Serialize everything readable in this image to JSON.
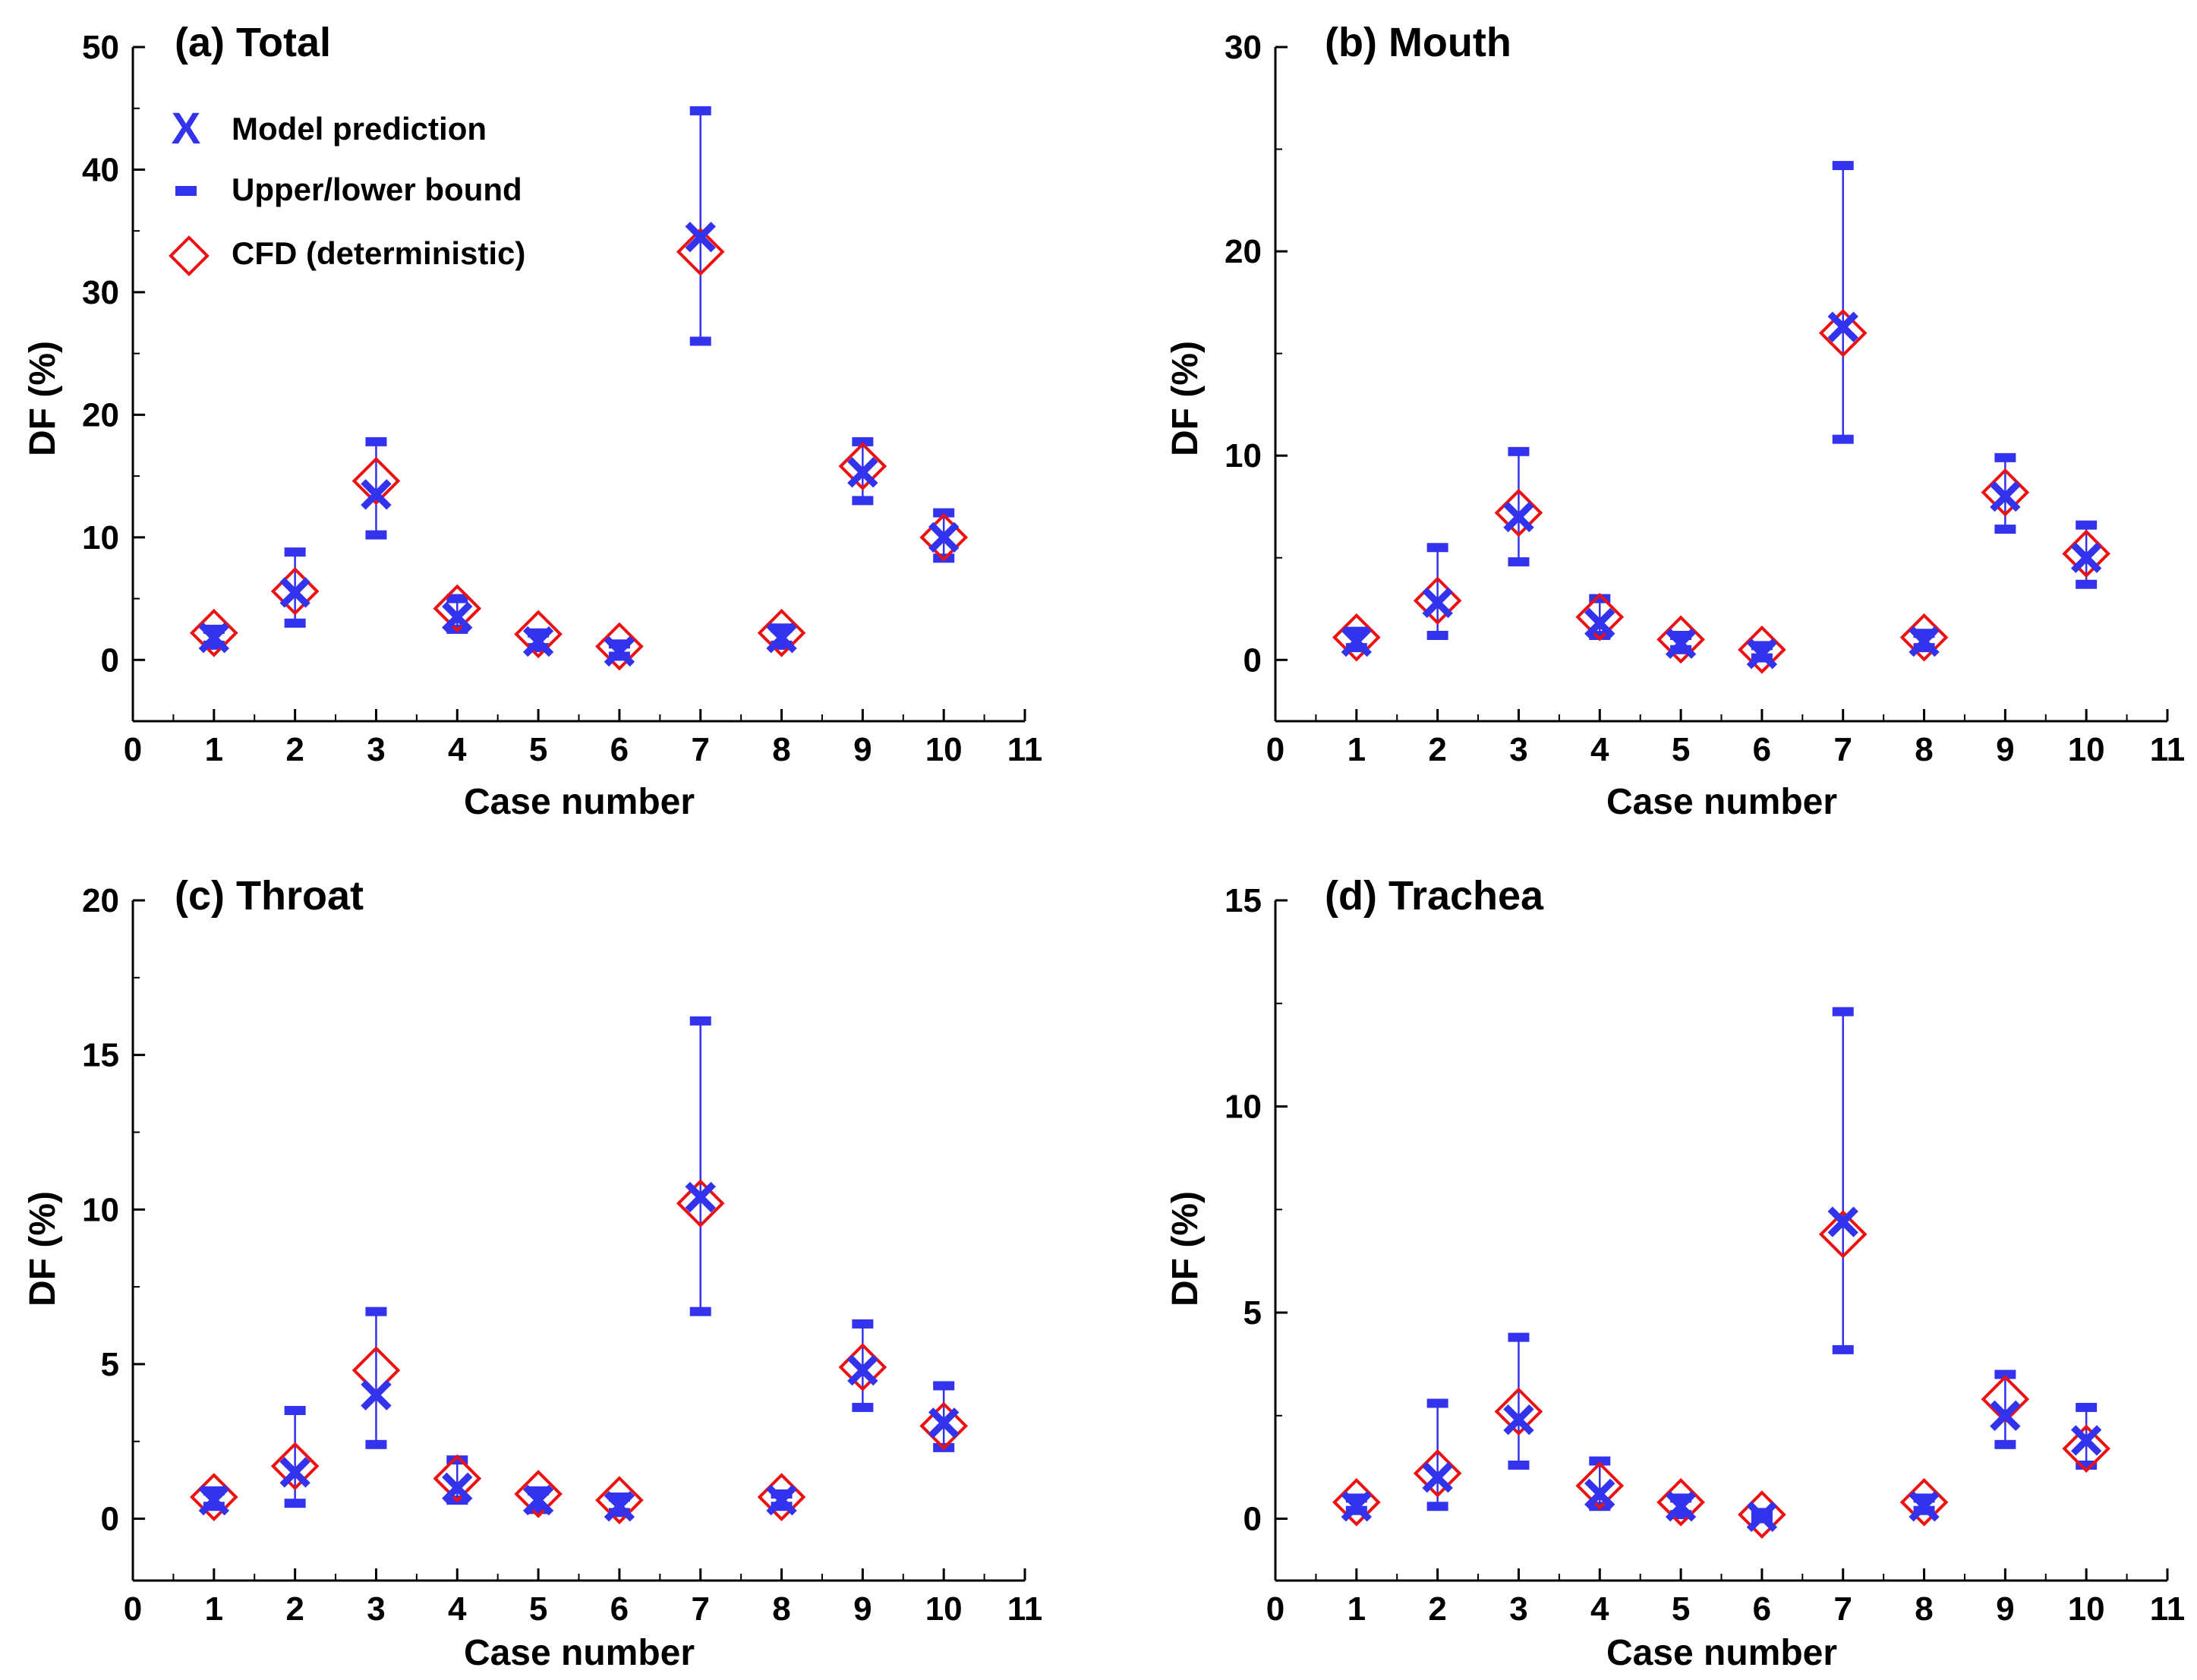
{
  "colors": {
    "model": "#3333ee",
    "cfd": "#ee1111",
    "axis": "#000000"
  },
  "legend": {
    "model_label": "Model prediction",
    "bound_label": "Upper/lower bound",
    "cfd_label": "CFD (deterministic)"
  },
  "chart_data": [
    {
      "type": "scatter",
      "title": "(a) Total",
      "xlabel": "Case number",
      "ylabel": "DF (%)",
      "xlim": [
        0,
        11
      ],
      "ylim": [
        -5,
        50
      ],
      "xticks": [
        0,
        1,
        2,
        3,
        4,
        5,
        6,
        7,
        8,
        9,
        10,
        11
      ],
      "yticks": [
        0,
        10,
        20,
        30,
        40,
        50
      ],
      "x": [
        1,
        2,
        3,
        4,
        5,
        6,
        7,
        8,
        9,
        10
      ],
      "series": [
        {
          "name": "Model prediction",
          "values": [
            1.8,
            5.5,
            13.5,
            3.5,
            1.5,
            0.7,
            34.5,
            1.8,
            15.3,
            10.0
          ]
        },
        {
          "name": "Upper bound",
          "values": [
            2.5,
            8.8,
            17.8,
            5.0,
            2.2,
            1.3,
            44.8,
            2.6,
            17.8,
            12.0
          ]
        },
        {
          "name": "Lower bound",
          "values": [
            1.2,
            3.0,
            10.2,
            2.5,
            1.0,
            0.3,
            26.0,
            1.2,
            13.0,
            8.3
          ]
        },
        {
          "name": "CFD (deterministic)",
          "values": [
            2.2,
            5.6,
            14.6,
            4.2,
            2.1,
            1.1,
            33.3,
            2.2,
            15.8,
            10.0
          ]
        }
      ]
    },
    {
      "type": "scatter",
      "title": "(b) Mouth",
      "xlabel": "Case number",
      "ylabel": "DF (%)",
      "xlim": [
        0,
        11
      ],
      "ylim": [
        -3,
        30
      ],
      "xticks": [
        0,
        1,
        2,
        3,
        4,
        5,
        6,
        7,
        8,
        9,
        10,
        11
      ],
      "yticks": [
        0,
        10,
        20,
        30
      ],
      "x": [
        1,
        2,
        3,
        4,
        5,
        6,
        7,
        8,
        9,
        10
      ],
      "series": [
        {
          "name": "Model prediction",
          "values": [
            0.9,
            2.8,
            7.0,
            1.8,
            0.8,
            0.3,
            16.3,
            0.9,
            8.0,
            5.0
          ]
        },
        {
          "name": "Upper bound",
          "values": [
            1.4,
            5.5,
            10.2,
            3.0,
            1.2,
            0.7,
            24.2,
            1.3,
            9.9,
            6.6
          ]
        },
        {
          "name": "Lower bound",
          "values": [
            0.6,
            1.2,
            4.8,
            1.2,
            0.5,
            0.1,
            10.8,
            0.6,
            6.4,
            3.7
          ]
        },
        {
          "name": "CFD (deterministic)",
          "values": [
            1.1,
            2.9,
            7.2,
            2.1,
            1.0,
            0.5,
            16.0,
            1.1,
            8.2,
            5.2
          ]
        }
      ]
    },
    {
      "type": "scatter",
      "title": "(c) Throat",
      "xlabel": "Case number",
      "ylabel": "DF (%)",
      "xlim": [
        0,
        11
      ],
      "ylim": [
        -2,
        20
      ],
      "xticks": [
        0,
        1,
        2,
        3,
        4,
        5,
        6,
        7,
        8,
        9,
        10,
        11
      ],
      "yticks": [
        0,
        5,
        10,
        15,
        20
      ],
      "x": [
        1,
        2,
        3,
        4,
        5,
        6,
        7,
        8,
        9,
        10
      ],
      "series": [
        {
          "name": "Model prediction",
          "values": [
            0.6,
            1.5,
            4.0,
            1.0,
            0.6,
            0.4,
            10.4,
            0.6,
            4.8,
            3.1
          ]
        },
        {
          "name": "Upper bound",
          "values": [
            0.9,
            3.5,
            6.7,
            1.9,
            0.9,
            0.7,
            16.1,
            0.8,
            6.3,
            4.3
          ]
        },
        {
          "name": "Lower bound",
          "values": [
            0.4,
            0.5,
            2.4,
            0.6,
            0.3,
            0.2,
            6.7,
            0.4,
            3.6,
            2.3
          ]
        },
        {
          "name": "CFD (deterministic)",
          "values": [
            0.7,
            1.7,
            4.8,
            1.3,
            0.8,
            0.6,
            10.2,
            0.7,
            4.9,
            3.0
          ]
        }
      ]
    },
    {
      "type": "scatter",
      "title": "(d) Trachea",
      "xlabel": "Case number",
      "ylabel": "DF (%)",
      "xlim": [
        0,
        11
      ],
      "ylim": [
        -1.5,
        15
      ],
      "xticks": [
        0,
        1,
        2,
        3,
        4,
        5,
        6,
        7,
        8,
        9,
        10,
        11
      ],
      "yticks": [
        0,
        5,
        10,
        15
      ],
      "x": [
        1,
        2,
        3,
        4,
        5,
        6,
        7,
        8,
        9,
        10
      ],
      "series": [
        {
          "name": "Model prediction",
          "values": [
            0.3,
            1.0,
            2.4,
            0.6,
            0.3,
            0.05,
            7.2,
            0.3,
            2.5,
            1.9
          ]
        },
        {
          "name": "Upper bound",
          "values": [
            0.5,
            2.8,
            4.4,
            1.4,
            0.5,
            0.15,
            12.3,
            0.5,
            3.5,
            2.7
          ]
        },
        {
          "name": "Lower bound",
          "values": [
            0.2,
            0.3,
            1.3,
            0.3,
            0.1,
            0.0,
            4.1,
            0.2,
            1.8,
            1.3
          ]
        },
        {
          "name": "CFD (deterministic)",
          "values": [
            0.4,
            1.1,
            2.6,
            0.8,
            0.4,
            0.1,
            6.9,
            0.4,
            2.9,
            1.7
          ]
        }
      ]
    }
  ]
}
